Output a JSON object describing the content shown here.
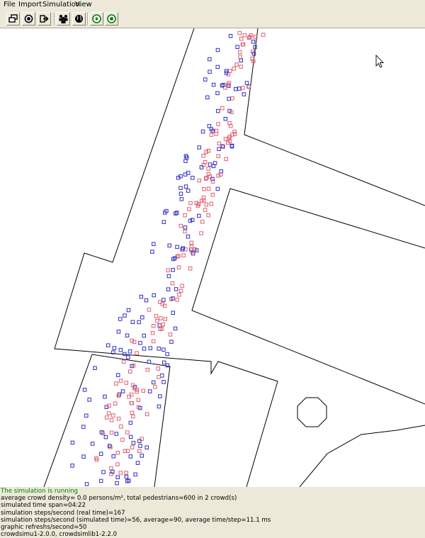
{
  "menu": {
    "file": "File",
    "import": "Import",
    "simulation": "Simulation",
    "view": "View"
  },
  "toolbar": {
    "buttons": [
      {
        "icon": "windows-icon"
      },
      {
        "icon": "record-icon"
      },
      {
        "icon": "export-icon"
      },
      {
        "icon": "crowd-icon"
      },
      {
        "icon": "globe-icon"
      },
      {
        "icon": "play-icon"
      },
      {
        "icon": "stop-icon"
      }
    ]
  },
  "colors": {
    "crowd_1": "#e06070",
    "crowd_2": "#3030c0",
    "running_text": "#008000"
  },
  "status": {
    "running": "The simulation is running",
    "density": "average crowd density= 0.0 persons/m², total pedestrians=600 in 2 crowd(s)",
    "time_span": "simulated time span=04:22",
    "steps_real": "simulation steps/second (real time)=167",
    "steps_sim": "simulation steps/second (simulated time)=56, average=90, average time/step=11.1 ms",
    "refresh": "graphic refreshs/second=50",
    "version": "crowdsimu1-2.0.0, crowdsimlib1-2.2.0"
  }
}
